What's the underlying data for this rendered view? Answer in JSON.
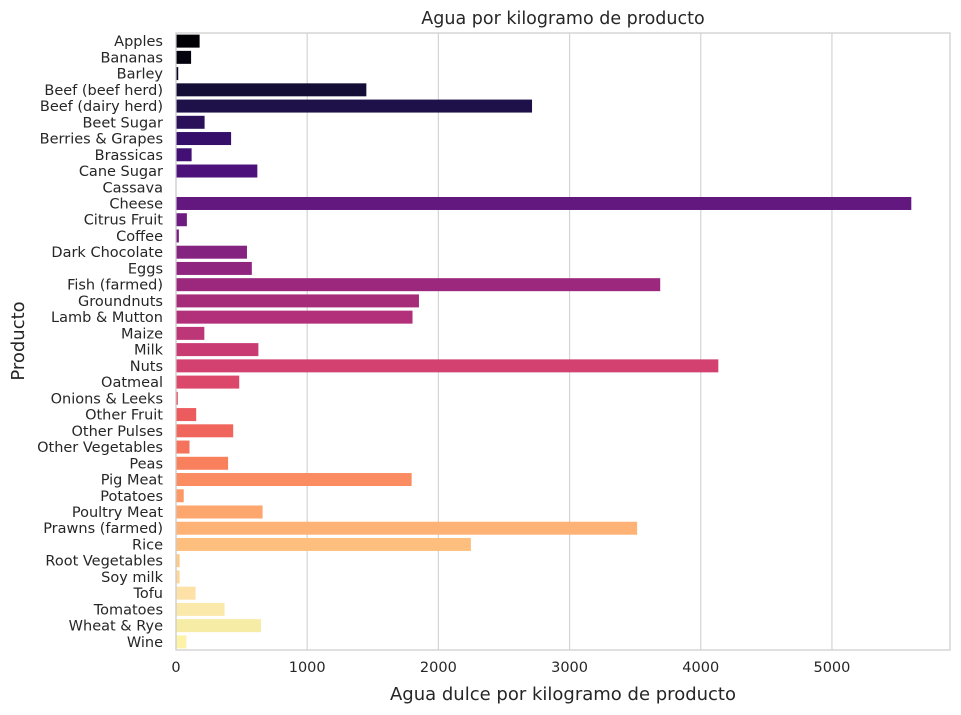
{
  "chart_data": {
    "type": "bar",
    "orientation": "horizontal",
    "title": "Agua por kilogramo de producto",
    "xlabel": "Agua dulce por kilogramo de producto",
    "ylabel": "Producto",
    "xlim": [
      0,
      5900
    ],
    "xticks": [
      0,
      1000,
      2000,
      3000,
      4000,
      5000
    ],
    "grid": true,
    "palette": "magma",
    "categories": [
      "Apples",
      "Bananas",
      "Barley",
      "Beef (beef herd)",
      "Beef (dairy herd)",
      "Beet Sugar",
      "Berries & Grapes",
      "Brassicas",
      "Cane Sugar",
      "Cassava",
      "Cheese",
      "Citrus Fruit",
      "Coffee",
      "Dark Chocolate",
      "Eggs",
      "Fish (farmed)",
      "Groundnuts",
      "Lamb & Mutton",
      "Maize",
      "Milk",
      "Nuts",
      "Oatmeal",
      "Onions & Leeks",
      "Other Fruit",
      "Other Pulses",
      "Other Vegetables",
      "Peas",
      "Pig Meat",
      "Potatoes",
      "Poultry Meat",
      "Prawns (farmed)",
      "Rice",
      "Root Vegetables",
      "Soy milk",
      "Tofu",
      "Tomatoes",
      "Wheat & Rye",
      "Wine"
    ],
    "values": [
      180,
      115,
      17,
      1451,
      2714,
      218,
      420,
      119,
      620,
      0,
      5605,
      83,
      22,
      541,
      578,
      3691,
      1852,
      1803,
      216,
      628,
      4134,
      482,
      14,
      154,
      436,
      103,
      397,
      1796,
      59,
      660,
      3515,
      2248,
      28,
      28,
      149,
      370,
      648,
      79
    ],
    "colors": [
      "#000004",
      "#03020d",
      "#0a0722",
      "#140e36",
      "#1e1149",
      "#2a115a",
      "#360f6b",
      "#420f75",
      "#4d117b",
      "#581480",
      "#631880",
      "#6e1c81",
      "#7a1f81",
      "#852381",
      "#90257f",
      "#9b287d",
      "#a62c7a",
      "#b2307a",
      "#bd3677",
      "#c83b73",
      "#d2416f",
      "#dc4869",
      "#e45063",
      "#ec5b5e",
      "#f1665c",
      "#f5735c",
      "#f8805d",
      "#fb8c61",
      "#fc9966",
      "#fda66e",
      "#feb275",
      "#febf7e",
      "#feca88",
      "#fed69a",
      "#fde1a6",
      "#fbe8ab",
      "#f6eca5",
      "#fcf2a8"
    ]
  }
}
